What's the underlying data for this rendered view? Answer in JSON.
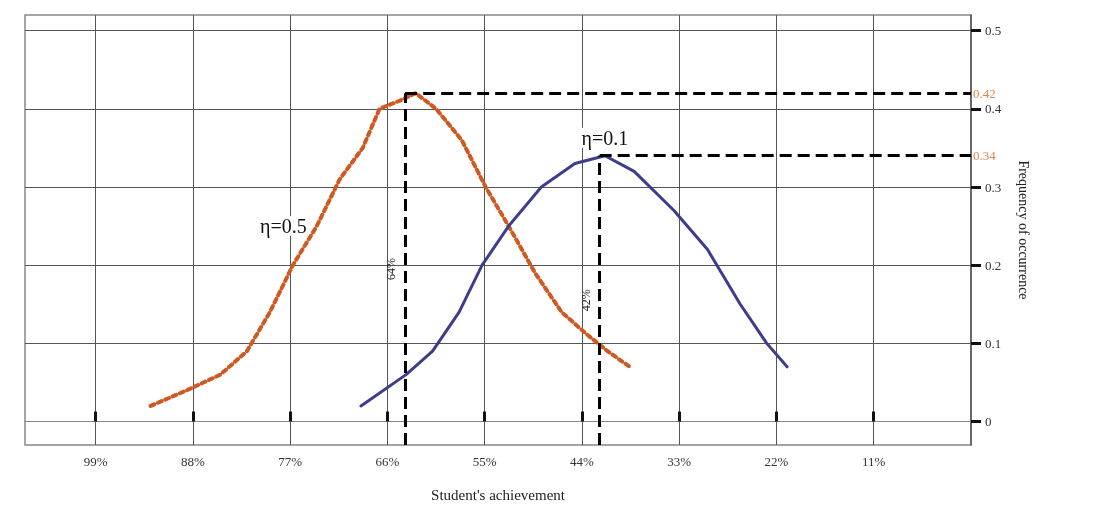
{
  "chart_data": {
    "type": "line",
    "xlabel": "Student's achievement",
    "ylabel": "Frequency of occurrence",
    "xlim": [
      107,
      0
    ],
    "xticks": [
      {
        "value": 99,
        "label": "99%"
      },
      {
        "value": 88,
        "label": "88%"
      },
      {
        "value": 77,
        "label": "77%"
      },
      {
        "value": 66,
        "label": "66%"
      },
      {
        "value": 55,
        "label": "55%"
      },
      {
        "value": 44,
        "label": "44%"
      },
      {
        "value": 33,
        "label": "33%"
      },
      {
        "value": 22,
        "label": "22%"
      },
      {
        "value": 11,
        "label": "11%"
      }
    ],
    "ylim": [
      -0.03,
      0.52
    ],
    "yticks": [
      0,
      0.1,
      0.2,
      0.3,
      0.4,
      0.5
    ],
    "grid": true,
    "marker": "none",
    "series": [
      {
        "name": "η=0.5",
        "color": "#cc5a22",
        "line_style": "dotted",
        "x": [
          92.8,
          88.7,
          84.9,
          81.9,
          79.3,
          76.7,
          74.0,
          71.4,
          68.8,
          66.9,
          64.7,
          62.8,
          60.5,
          57.6,
          54.9,
          52.3,
          49.3,
          46.3,
          43.3,
          41.1,
          38.6
        ],
        "values": [
          0.02,
          0.04,
          0.06,
          0.09,
          0.14,
          0.2,
          0.25,
          0.31,
          0.35,
          0.4,
          0.41,
          0.42,
          0.4,
          0.36,
          0.3,
          0.25,
          0.19,
          0.14,
          0.11,
          0.09,
          0.07
        ]
      },
      {
        "name": "η=0.1",
        "color": "#3d3d8c",
        "line_style": "solid",
        "x": [
          69.0,
          63.9,
          60.9,
          57.9,
          55.3,
          52.3,
          48.6,
          44.8,
          41.4,
          38.1,
          33.6,
          29.8,
          26.1,
          23.1,
          20.8
        ],
        "values": [
          0.02,
          0.06,
          0.09,
          0.14,
          0.2,
          0.25,
          0.3,
          0.33,
          0.34,
          0.32,
          0.27,
          0.22,
          0.15,
          0.1,
          0.07
        ]
      }
    ],
    "ref_lines": [
      {
        "axis": "x",
        "value": 64,
        "label": "64%",
        "color": "#000000",
        "line_style": "dashed"
      },
      {
        "axis": "y",
        "value": 0.42,
        "label": "0.42",
        "color": "#000000",
        "line_style": "dashed"
      },
      {
        "axis": "x",
        "value": 42,
        "label": "42%",
        "color": "#000000",
        "line_style": "dashed"
      },
      {
        "axis": "y",
        "value": 0.34,
        "label": "0.34",
        "color": "#000000",
        "line_style": "dashed"
      }
    ]
  }
}
